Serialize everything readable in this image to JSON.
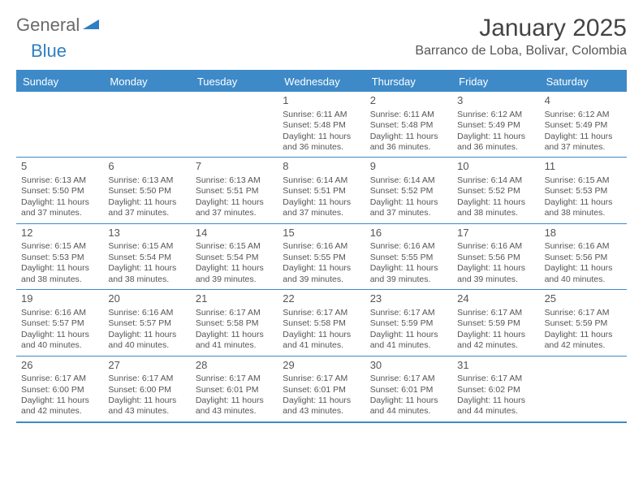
{
  "logo": {
    "word1": "General",
    "word2": "Blue"
  },
  "header": {
    "month_title": "January 2025",
    "location": "Barranco de Loba, Bolivar, Colombia"
  },
  "colors": {
    "accent": "#3e8ac8",
    "logo_grey": "#6a6a6a",
    "logo_blue": "#2f7fc1",
    "text": "#444444",
    "background": "#ffffff"
  },
  "day_labels": [
    "Sunday",
    "Monday",
    "Tuesday",
    "Wednesday",
    "Thursday",
    "Friday",
    "Saturday"
  ],
  "weeks": [
    [
      null,
      null,
      null,
      {
        "n": "1",
        "sr": "6:11 AM",
        "ss": "5:48 PM",
        "dlm": "36"
      },
      {
        "n": "2",
        "sr": "6:11 AM",
        "ss": "5:48 PM",
        "dlm": "36"
      },
      {
        "n": "3",
        "sr": "6:12 AM",
        "ss": "5:49 PM",
        "dlm": "36"
      },
      {
        "n": "4",
        "sr": "6:12 AM",
        "ss": "5:49 PM",
        "dlm": "37"
      }
    ],
    [
      {
        "n": "5",
        "sr": "6:13 AM",
        "ss": "5:50 PM",
        "dlm": "37"
      },
      {
        "n": "6",
        "sr": "6:13 AM",
        "ss": "5:50 PM",
        "dlm": "37"
      },
      {
        "n": "7",
        "sr": "6:13 AM",
        "ss": "5:51 PM",
        "dlm": "37"
      },
      {
        "n": "8",
        "sr": "6:14 AM",
        "ss": "5:51 PM",
        "dlm": "37"
      },
      {
        "n": "9",
        "sr": "6:14 AM",
        "ss": "5:52 PM",
        "dlm": "37"
      },
      {
        "n": "10",
        "sr": "6:14 AM",
        "ss": "5:52 PM",
        "dlm": "38"
      },
      {
        "n": "11",
        "sr": "6:15 AM",
        "ss": "5:53 PM",
        "dlm": "38"
      }
    ],
    [
      {
        "n": "12",
        "sr": "6:15 AM",
        "ss": "5:53 PM",
        "dlm": "38"
      },
      {
        "n": "13",
        "sr": "6:15 AM",
        "ss": "5:54 PM",
        "dlm": "38"
      },
      {
        "n": "14",
        "sr": "6:15 AM",
        "ss": "5:54 PM",
        "dlm": "39"
      },
      {
        "n": "15",
        "sr": "6:16 AM",
        "ss": "5:55 PM",
        "dlm": "39"
      },
      {
        "n": "16",
        "sr": "6:16 AM",
        "ss": "5:55 PM",
        "dlm": "39"
      },
      {
        "n": "17",
        "sr": "6:16 AM",
        "ss": "5:56 PM",
        "dlm": "39"
      },
      {
        "n": "18",
        "sr": "6:16 AM",
        "ss": "5:56 PM",
        "dlm": "40"
      }
    ],
    [
      {
        "n": "19",
        "sr": "6:16 AM",
        "ss": "5:57 PM",
        "dlm": "40"
      },
      {
        "n": "20",
        "sr": "6:16 AM",
        "ss": "5:57 PM",
        "dlm": "40"
      },
      {
        "n": "21",
        "sr": "6:17 AM",
        "ss": "5:58 PM",
        "dlm": "41"
      },
      {
        "n": "22",
        "sr": "6:17 AM",
        "ss": "5:58 PM",
        "dlm": "41"
      },
      {
        "n": "23",
        "sr": "6:17 AM",
        "ss": "5:59 PM",
        "dlm": "41"
      },
      {
        "n": "24",
        "sr": "6:17 AM",
        "ss": "5:59 PM",
        "dlm": "42"
      },
      {
        "n": "25",
        "sr": "6:17 AM",
        "ss": "5:59 PM",
        "dlm": "42"
      }
    ],
    [
      {
        "n": "26",
        "sr": "6:17 AM",
        "ss": "6:00 PM",
        "dlm": "42"
      },
      {
        "n": "27",
        "sr": "6:17 AM",
        "ss": "6:00 PM",
        "dlm": "43"
      },
      {
        "n": "28",
        "sr": "6:17 AM",
        "ss": "6:01 PM",
        "dlm": "43"
      },
      {
        "n": "29",
        "sr": "6:17 AM",
        "ss": "6:01 PM",
        "dlm": "43"
      },
      {
        "n": "30",
        "sr": "6:17 AM",
        "ss": "6:01 PM",
        "dlm": "44"
      },
      {
        "n": "31",
        "sr": "6:17 AM",
        "ss": "6:02 PM",
        "dlm": "44"
      },
      null
    ]
  ],
  "labels": {
    "sunrise_prefix": "Sunrise: ",
    "sunset_prefix": "Sunset: ",
    "daylight_prefix": "Daylight: 11 hours and ",
    "daylight_suffix": " minutes."
  }
}
